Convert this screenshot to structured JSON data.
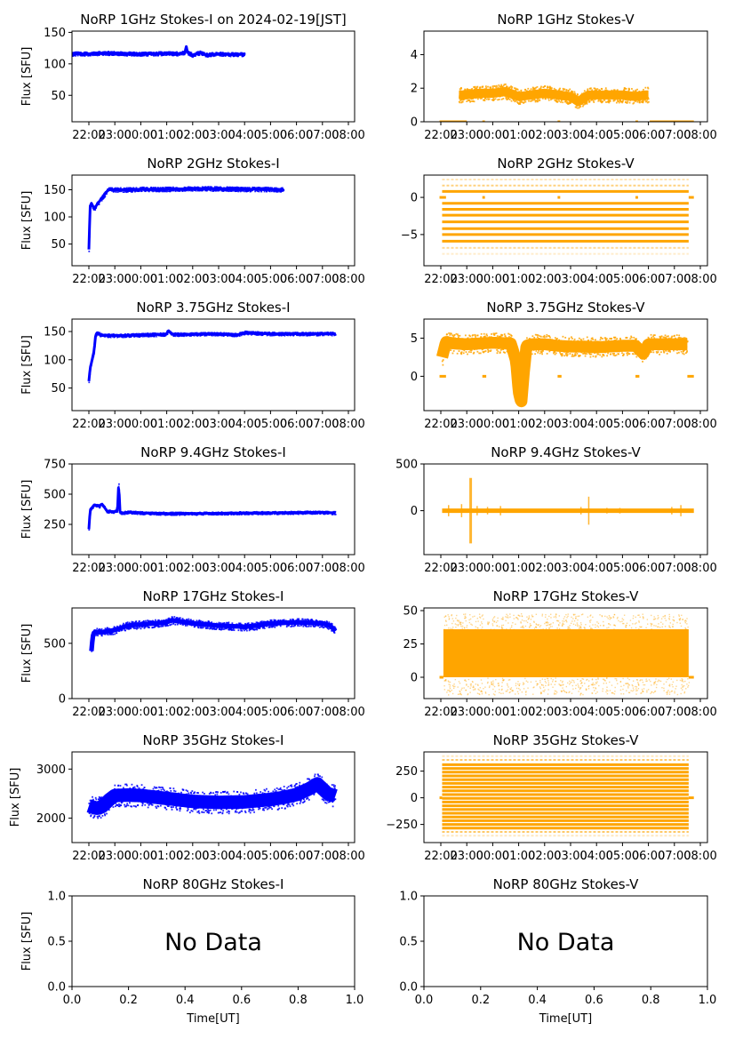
{
  "figure": {
    "time_axis_ticks": [
      "22:00",
      "23:00",
      "00:00",
      "01:00",
      "02:00",
      "03:00",
      "04:00",
      "05:00",
      "06:00",
      "07:00",
      "08:00"
    ],
    "ylabel": "Flux [SFU]",
    "xlabel_bottom": "Time[UT]",
    "no_data_label": "No Data",
    "colors": {
      "stokes_i": "#0000ff",
      "stokes_v": "#ffa500"
    }
  },
  "chart_data": [
    {
      "type": "scatter",
      "id": "1ghz-i",
      "title": "NoRP 1GHz Stokes-I on 2024-02-19[JST]",
      "ylabel": "Flux [SFU]",
      "xlim_hours": [
        -2.65,
        8.2
      ],
      "ylim": [
        8,
        152
      ],
      "yticks": [
        50,
        100,
        150
      ],
      "series": [
        {
          "name": "Stokes-I",
          "color": "#0000ff",
          "x": [
            -1.25,
            -1.2,
            -1.1,
            -1.0,
            -0.9,
            -0.5,
            0,
            0.5,
            1.0,
            1.5,
            2.0,
            2.5,
            3.0,
            3.5,
            3.7,
            3.75,
            3.8,
            4.0,
            4.3,
            4.5,
            5.0,
            5.5,
            6.0
          ],
          "y": [
            60,
            75,
            95,
            110,
            115,
            116,
            116,
            117,
            117,
            116,
            116,
            116,
            117,
            116,
            118,
            128,
            118,
            114,
            118,
            114,
            116,
            115,
            115
          ],
          "band": 3
        }
      ]
    },
    {
      "type": "scatter",
      "id": "1ghz-v",
      "title": "NoRP 1GHz Stokes-V",
      "xlim_hours": [
        -2.65,
        8.2
      ],
      "ylim": [
        0,
        5.4
      ],
      "yticks": [
        0,
        2,
        4
      ],
      "series": [
        {
          "name": "Stokes-V",
          "color": "#ffa500",
          "x": [
            -1.3,
            -1.0,
            -0.5,
            0,
            0.5,
            1.0,
            1.5,
            2.0,
            2.5,
            3.0,
            3.3,
            3.7,
            4.0,
            4.5,
            5.0,
            5.5,
            5.9,
            6.0
          ],
          "y": [
            1.6,
            1.6,
            1.7,
            1.7,
            1.8,
            1.5,
            1.6,
            1.7,
            1.6,
            1.5,
            1.2,
            1.6,
            1.6,
            1.6,
            1.6,
            1.5,
            1.6,
            1.6
          ],
          "band": 0.45,
          "zero_segments": [
            [
              -2.05,
              -1.0
            ],
            [
              -0.4,
              -0.3
            ],
            [
              2.5,
              2.6
            ],
            [
              5.5,
              5.6
            ],
            [
              6.05,
              7.75
            ]
          ]
        }
      ]
    },
    {
      "type": "scatter",
      "id": "2ghz-i",
      "title": "NoRP 2GHz Stokes-I",
      "ylabel": "Flux [SFU]",
      "xlim_hours": [
        -2.65,
        8.2
      ],
      "ylim": [
        10,
        177
      ],
      "yticks": [
        50,
        100,
        150
      ],
      "series": [
        {
          "name": "Stokes-I",
          "color": "#0000ff",
          "x": [
            0.0,
            0.05,
            0.1,
            0.2,
            0.35,
            0.5,
            0.75,
            1.0,
            1.5,
            2.0,
            3.0,
            4.0,
            5.0,
            6.0,
            7.0,
            7.5
          ],
          "y": [
            40,
            120,
            125,
            115,
            125,
            135,
            150,
            150,
            150,
            151,
            151,
            152,
            152,
            151,
            151,
            150
          ],
          "band": 4,
          "x_offset_hours": -0.0
        }
      ]
    },
    {
      "type": "scatter",
      "id": "2ghz-v",
      "title": "NoRP 2GHz Stokes-V",
      "xlim_hours": [
        -2.65,
        8.2
      ],
      "ylim": [
        -9.2,
        3.0
      ],
      "yticks": [
        -5,
        0
      ],
      "series": [
        {
          "name": "Stokes-V",
          "color": "#ffa500",
          "levels": [
            2.4,
            1.6,
            0.8,
            -0.8,
            -1.6,
            -2.4,
            -3.3,
            -4.2,
            -5.0,
            -5.9,
            -6.8,
            -7.6
          ],
          "level_weights": [
            0.3,
            0.5,
            1,
            1,
            1,
            1,
            1,
            1,
            1,
            1,
            0.4,
            0.2
          ],
          "x_range": [
            -1.95,
            7.55
          ],
          "zero_segments": [
            [
              -2.05,
              -1.8
            ],
            [
              -0.4,
              -0.3
            ],
            [
              2.5,
              2.6
            ],
            [
              5.5,
              5.6
            ],
            [
              7.55,
              7.75
            ]
          ]
        }
      ]
    },
    {
      "type": "scatter",
      "id": "3.75ghz-i",
      "title": "NoRP 3.75GHz Stokes-I",
      "ylabel": "Flux [SFU]",
      "xlim_hours": [
        -2.65,
        8.2
      ],
      "ylim": [
        10,
        172
      ],
      "yticks": [
        50,
        100,
        150
      ],
      "series": [
        {
          "name": "Stokes-I",
          "color": "#0000ff",
          "x": [
            0.0,
            0.05,
            0.1,
            0.2,
            0.25,
            0.3,
            0.5,
            1.0,
            1.5,
            2.0,
            3.0,
            3.05,
            3.2,
            3.5,
            4.0,
            4.5,
            5.0,
            5.7,
            6.0,
            7.0,
            8.5,
            9.0,
            9.5
          ],
          "y": [
            62,
            85,
            95,
            115,
            140,
            148,
            143,
            143,
            143,
            144,
            145,
            152,
            145,
            145,
            145,
            146,
            146,
            144,
            148,
            146,
            146,
            146,
            146
          ],
          "band": 3
        }
      ]
    },
    {
      "type": "scatter",
      "id": "3.75ghz-v",
      "title": "NoRP 3.75GHz Stokes-V",
      "xlim_hours": [
        -2.65,
        8.2
      ],
      "ylim": [
        -4.5,
        7.5
      ],
      "yticks": [
        0,
        5
      ],
      "series": [
        {
          "name": "Stokes-V",
          "color": "#ffa500",
          "x": [
            -1.95,
            -1.8,
            -1.5,
            -1.0,
            -0.5,
            0,
            0.7,
            0.9,
            1.0,
            1.1,
            1.2,
            1.3,
            1.5,
            2.0,
            2.5,
            3.0,
            3.5,
            4.0,
            4.5,
            5.0,
            5.5,
            5.8,
            6.0,
            6.5,
            7.0,
            7.5
          ],
          "y": [
            2.5,
            4.5,
            4.3,
            4.2,
            4.3,
            4.4,
            4.3,
            2.0,
            -2.0,
            -3.5,
            0.5,
            4.0,
            4.2,
            4.2,
            4.0,
            3.9,
            3.9,
            3.8,
            3.9,
            4.0,
            4.0,
            3.0,
            4.2,
            4.2,
            4.2,
            4.2
          ],
          "band": 1.3,
          "zero_segments": [
            [
              -2.05,
              -1.8
            ],
            [
              -0.4,
              -0.25
            ],
            [
              2.5,
              2.65
            ],
            [
              5.5,
              5.65
            ],
            [
              7.5,
              7.75
            ]
          ]
        }
      ]
    },
    {
      "type": "scatter",
      "id": "9.4ghz-i",
      "title": "NoRP 9.4GHz Stokes-I",
      "ylabel": "Flux [SFU]",
      "xlim_hours": [
        -2.65,
        8.2
      ],
      "ylim": [
        0,
        750
      ],
      "yticks": [
        250,
        500,
        750
      ],
      "series": [
        {
          "name": "Stokes-I",
          "color": "#0000ff",
          "x": [
            0.0,
            0.05,
            0.2,
            0.4,
            0.5,
            0.7,
            1.0,
            1.1,
            1.15,
            1.2,
            1.3,
            1.5,
            2.0,
            3.0,
            4.0,
            5.0,
            6.0,
            7.0,
            8.0,
            9.0,
            9.5
          ],
          "y": [
            210,
            370,
            410,
            400,
            420,
            360,
            355,
            360,
            600,
            350,
            345,
            350,
            345,
            340,
            340,
            342,
            345,
            345,
            348,
            350,
            345
          ],
          "band": 12,
          "x_offset_hours": 0
        }
      ]
    },
    {
      "type": "scatter",
      "id": "9.4ghz-v",
      "title": "NoRP 9.4GHz Stokes-V",
      "xlim_hours": [
        -2.65,
        8.2
      ],
      "ylim": [
        -470,
        500
      ],
      "yticks": [
        0,
        500
      ],
      "series": [
        {
          "name": "Stokes-V",
          "color": "#ffa500",
          "x_range": [
            -1.95,
            7.75
          ],
          "spikes": [
            [
              -1.7,
              60
            ],
            [
              -1.2,
              70
            ],
            [
              -0.85,
              350
            ],
            [
              -0.6,
              50
            ],
            [
              -0.2,
              40
            ],
            [
              0.3,
              50
            ],
            [
              3.4,
              40
            ],
            [
              3.7,
              150
            ],
            [
              4.4,
              30
            ],
            [
              4.9,
              30
            ],
            [
              6.9,
              40
            ],
            [
              7.25,
              60
            ]
          ],
          "band": 12
        }
      ]
    },
    {
      "type": "scatter",
      "id": "17ghz-i",
      "title": "NoRP 17GHz Stokes-I",
      "ylabel": "Flux [SFU]",
      "xlim_hours": [
        -2.65,
        8.2
      ],
      "ylim": [
        0,
        820
      ],
      "yticks": [
        0,
        500
      ],
      "series": [
        {
          "name": "Stokes-I",
          "color": "#0000ff",
          "x": [
            0.1,
            0.15,
            0.2,
            0.5,
            1.0,
            1.5,
            2.0,
            2.5,
            3.0,
            3.2,
            3.5,
            4.0,
            5.0,
            6.0,
            6.5,
            7.0,
            8.0,
            9.0,
            9.3,
            9.5
          ],
          "y": [
            430,
            560,
            600,
            600,
            620,
            660,
            670,
            680,
            690,
            710,
            700,
            680,
            660,
            650,
            660,
            680,
            690,
            680,
            660,
            610
          ],
          "band": 35
        }
      ]
    },
    {
      "type": "scatter",
      "id": "17ghz-v",
      "title": "NoRP 17GHz Stokes-V",
      "xlim_hours": [
        -2.65,
        8.2
      ],
      "ylim": [
        -16,
        52
      ],
      "yticks": [
        0,
        25,
        50
      ],
      "series": [
        {
          "name": "Stokes-V",
          "color": "#ffa500",
          "x_range": [
            -1.9,
            7.55
          ],
          "low": 0,
          "high": 36,
          "fuzz": 8,
          "zero_segments": [
            [
              -2.05,
              -1.9
            ],
            [
              7.55,
              7.75
            ]
          ]
        }
      ]
    },
    {
      "type": "scatter",
      "id": "35ghz-i",
      "title": "NoRP 35GHz Stokes-I",
      "ylabel": "Flux [SFU]",
      "xlim_hours": [
        -2.65,
        8.2
      ],
      "ylim": [
        1500,
        3350
      ],
      "yticks": [
        2000,
        3000
      ],
      "series": [
        {
          "name": "Stokes-I",
          "color": "#0000ff",
          "x": [
            0.0,
            0.3,
            0.5,
            0.8,
            1.0,
            1.5,
            2.0,
            3.0,
            4.0,
            5.0,
            6.0,
            7.0,
            7.5,
            8.0,
            8.5,
            8.8,
            9.0,
            9.2,
            9.5
          ],
          "y": [
            2250,
            2200,
            2230,
            2380,
            2460,
            2470,
            2460,
            2400,
            2340,
            2320,
            2330,
            2380,
            2420,
            2480,
            2600,
            2700,
            2600,
            2500,
            2450
          ],
          "band": 230
        }
      ]
    },
    {
      "type": "scatter",
      "id": "35ghz-v",
      "title": "NoRP 35GHz Stokes-V",
      "xlim_hours": [
        -2.65,
        8.2
      ],
      "ylim": [
        -420,
        430
      ],
      "yticks": [
        -250,
        0,
        250
      ],
      "series": [
        {
          "name": "Stokes-V",
          "color": "#ffa500",
          "levels": [
            390,
            355,
            310,
            275,
            240,
            205,
            170,
            135,
            100,
            65,
            30,
            -5,
            -40,
            -75,
            -110,
            -145,
            -180,
            -215,
            -250,
            -285,
            -320,
            -355
          ],
          "level_weights": [
            0.25,
            0.6,
            1,
            1,
            1,
            1,
            1,
            1,
            1,
            1,
            1,
            1,
            1,
            1,
            1,
            1,
            1,
            1,
            1,
            1,
            0.6,
            0.25
          ],
          "x_range": [
            -1.95,
            7.55
          ],
          "zero_segments": [
            [
              -2.05,
              -1.95
            ],
            [
              7.55,
              7.75
            ]
          ]
        }
      ]
    },
    {
      "type": "scatter",
      "id": "80ghz-i",
      "title": "NoRP 80GHz Stokes-I",
      "ylabel": "Flux [SFU]",
      "xlabel": "Time[UT]",
      "xlim": [
        0,
        1
      ],
      "ylim": [
        0,
        1
      ],
      "xticks": [
        0.0,
        0.2,
        0.4,
        0.6,
        0.8,
        1.0
      ],
      "yticks": [
        0.0,
        0.5,
        1.0
      ],
      "annotation": "No Data",
      "series": []
    },
    {
      "type": "scatter",
      "id": "80ghz-v",
      "title": "NoRP 80GHz Stokes-V",
      "xlabel": "Time[UT]",
      "xlim": [
        0,
        1
      ],
      "ylim": [
        0,
        1
      ],
      "xticks": [
        0.0,
        0.2,
        0.4,
        0.6,
        0.8,
        1.0
      ],
      "yticks": [
        0.0,
        0.5,
        1.0
      ],
      "annotation": "No Data",
      "series": []
    }
  ]
}
